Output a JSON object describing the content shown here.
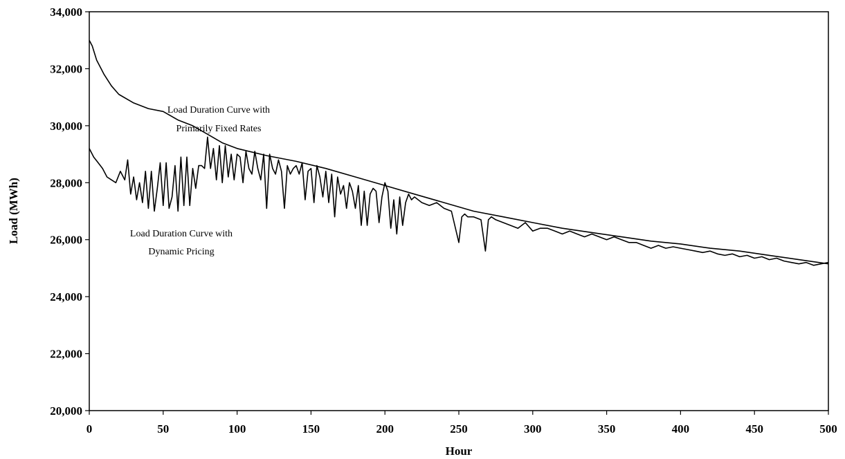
{
  "chart_data": {
    "type": "line",
    "title": "",
    "xlabel": "Hour",
    "ylabel": "Load (MWh)",
    "xlim": [
      0,
      500
    ],
    "ylim": [
      20000,
      34000
    ],
    "x_ticks": [
      "0",
      "50",
      "100",
      "150",
      "200",
      "250",
      "300",
      "350",
      "400",
      "450",
      "500"
    ],
    "y_ticks": [
      "20,000",
      "22,000",
      "24,000",
      "26,000",
      "28,000",
      "30,000",
      "32,000",
      "34,000"
    ],
    "grid": false,
    "legend": "none",
    "line_color": "#000000",
    "annotations": [
      {
        "lines": [
          "Load Duration Curve with",
          "Primarily Fixed Rates"
        ],
        "series": "fixed"
      },
      {
        "lines": [
          "Load Duration Curve with",
          "Dynamic Pricing"
        ],
        "series": "dynamic"
      }
    ],
    "series": [
      {
        "id": "fixed",
        "x": [
          0,
          2,
          5,
          8,
          10,
          15,
          20,
          30,
          40,
          50,
          60,
          70,
          80,
          90,
          100,
          120,
          140,
          160,
          180,
          200,
          220,
          240,
          260,
          280,
          300,
          320,
          340,
          360,
          380,
          400,
          420,
          440,
          460,
          480,
          500
        ],
        "values": [
          33000,
          32800,
          32300,
          32000,
          31800,
          31400,
          31100,
          30800,
          30600,
          30500,
          30200,
          30000,
          29700,
          29400,
          29200,
          28950,
          28750,
          28500,
          28200,
          27900,
          27600,
          27300,
          27000,
          26800,
          26600,
          26400,
          26250,
          26100,
          25950,
          25850,
          25700,
          25600,
          25450,
          25300,
          25150
        ]
      },
      {
        "id": "dynamic",
        "x": [
          0,
          3,
          6,
          9,
          12,
          15,
          18,
          21,
          24,
          26,
          28,
          30,
          32,
          34,
          36,
          38,
          40,
          42,
          44,
          46,
          48,
          50,
          52,
          54,
          56,
          58,
          60,
          62,
          64,
          66,
          68,
          70,
          72,
          74,
          76,
          78,
          80,
          82,
          84,
          86,
          88,
          90,
          92,
          94,
          96,
          98,
          100,
          102,
          104,
          106,
          108,
          110,
          112,
          114,
          116,
          118,
          120,
          122,
          124,
          126,
          128,
          130,
          132,
          134,
          136,
          138,
          140,
          142,
          144,
          146,
          148,
          150,
          152,
          154,
          156,
          158,
          160,
          162,
          164,
          166,
          168,
          170,
          172,
          174,
          176,
          178,
          180,
          182,
          184,
          186,
          188,
          190,
          192,
          194,
          196,
          198,
          200,
          202,
          204,
          206,
          208,
          210,
          212,
          214,
          216,
          218,
          220,
          225,
          230,
          235,
          240,
          245,
          250,
          252,
          254,
          256,
          260,
          265,
          268,
          270,
          272,
          275,
          280,
          285,
          290,
          295,
          300,
          305,
          310,
          315,
          320,
          325,
          330,
          335,
          340,
          345,
          350,
          355,
          360,
          365,
          370,
          375,
          380,
          385,
          390,
          395,
          400,
          405,
          410,
          415,
          420,
          425,
          430,
          435,
          440,
          445,
          450,
          455,
          460,
          465,
          470,
          475,
          480,
          485,
          490,
          495,
          500
        ],
        "values": [
          29200,
          28900,
          28700,
          28500,
          28200,
          28100,
          28000,
          28400,
          28100,
          28800,
          27600,
          28200,
          27400,
          28000,
          27300,
          28400,
          27100,
          28400,
          27000,
          27800,
          28700,
          27200,
          28700,
          27100,
          27500,
          28600,
          27000,
          28900,
          27200,
          28900,
          27200,
          28500,
          27800,
          28600,
          28600,
          28500,
          29600,
          28500,
          29200,
          28100,
          29300,
          28000,
          29300,
          28200,
          29000,
          28100,
          29000,
          28900,
          28000,
          29100,
          28500,
          28300,
          29100,
          28500,
          28100,
          29000,
          27100,
          29000,
          28500,
          28300,
          28800,
          28400,
          27100,
          28600,
          28300,
          28500,
          28600,
          28300,
          28700,
          27400,
          28400,
          28500,
          27300,
          28600,
          28200,
          27500,
          28400,
          27300,
          28300,
          26800,
          28200,
          27600,
          27900,
          27100,
          28000,
          27700,
          27100,
          27900,
          26500,
          27700,
          26500,
          27600,
          27800,
          27700,
          26600,
          27500,
          28000,
          27700,
          26400,
          27400,
          26200,
          27500,
          26500,
          27300,
          27600,
          27400,
          27500,
          27300,
          27200,
          27300,
          27100,
          27000,
          25900,
          26800,
          26900,
          26800,
          26800,
          26700,
          25600,
          26700,
          26800,
          26700,
          26600,
          26500,
          26400,
          26600,
          26300,
          26400,
          26400,
          26300,
          26200,
          26300,
          26200,
          26100,
          26200,
          26100,
          26000,
          26100,
          26000,
          25900,
          25900,
          25800,
          25700,
          25800,
          25700,
          25750,
          25700,
          25650,
          25600,
          25550,
          25600,
          25500,
          25450,
          25500,
          25400,
          25450,
          25350,
          25400,
          25300,
          25350,
          25250,
          25200,
          25150,
          25200,
          25100,
          25150,
          25200
        ]
      }
    ]
  }
}
